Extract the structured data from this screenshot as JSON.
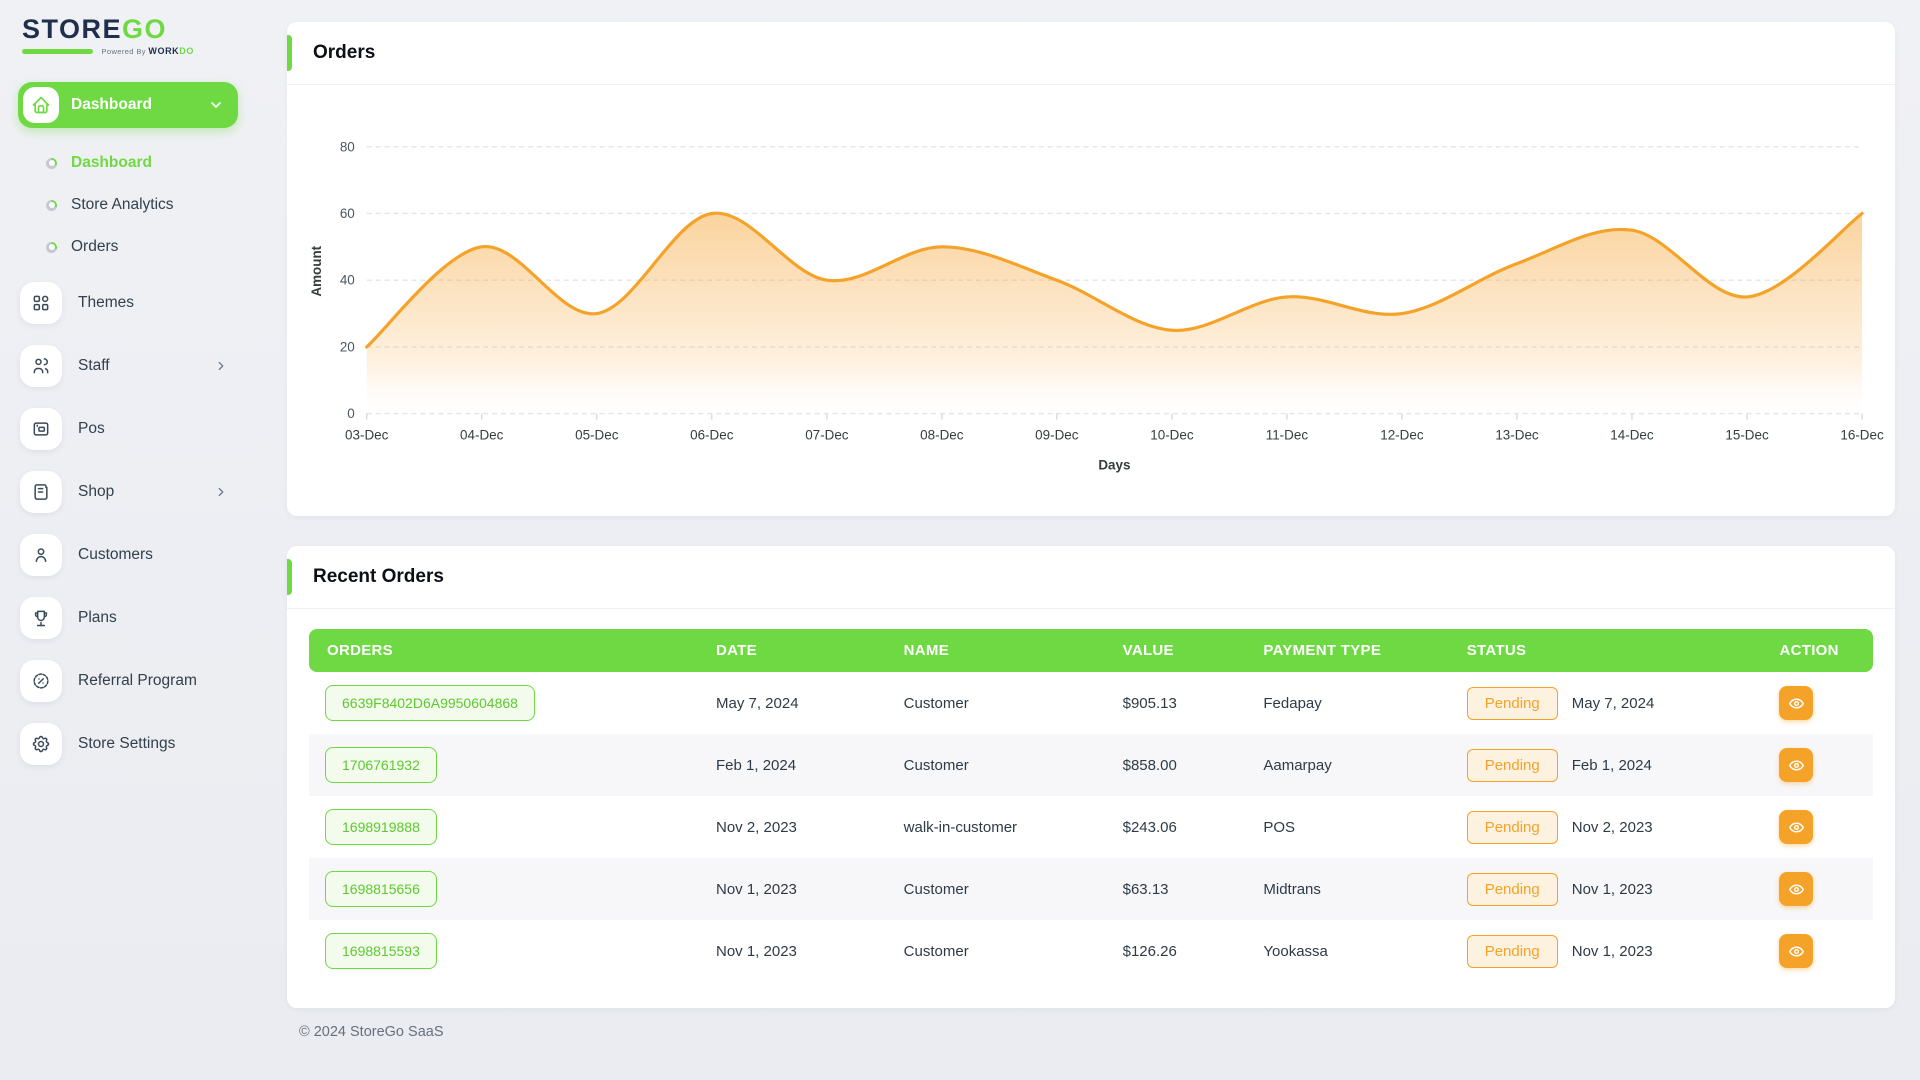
{
  "brand": {
    "name_part1": "STORE",
    "name_part2": "GO",
    "powered_prefix": "Powered By",
    "powered_brand_part1": "WORK",
    "powered_brand_part2": "DO"
  },
  "colors": {
    "primary_green": "#6fd943",
    "accent_orange": "#f5a228",
    "navy_text": "#20304c",
    "page_bg": "#eef0f4"
  },
  "sidebar": {
    "group": {
      "label": "Dashboard",
      "icon": "home-icon"
    },
    "submenu": [
      {
        "label": "Dashboard",
        "active": true
      },
      {
        "label": "Store Analytics",
        "active": false
      },
      {
        "label": "Orders",
        "active": false
      }
    ],
    "items": [
      {
        "label": "Themes",
        "icon": "grid-icon",
        "chevron": false
      },
      {
        "label": "Staff",
        "icon": "users-icon",
        "chevron": true
      },
      {
        "label": "Pos",
        "icon": "pos-terminal-icon",
        "chevron": false
      },
      {
        "label": "Shop",
        "icon": "receipt-icon",
        "chevron": true
      },
      {
        "label": "Customers",
        "icon": "user-icon",
        "chevron": false
      },
      {
        "label": "Plans",
        "icon": "trophy-icon",
        "chevron": false
      },
      {
        "label": "Referral Program",
        "icon": "percent-badge-icon",
        "chevron": false
      },
      {
        "label": "Store Settings",
        "icon": "gear-icon",
        "chevron": false
      }
    ]
  },
  "orders_card": {
    "title": "Orders"
  },
  "chart_data": {
    "type": "area",
    "title": "Orders",
    "x": [
      "03-Dec",
      "04-Dec",
      "05-Dec",
      "06-Dec",
      "07-Dec",
      "08-Dec",
      "09-Dec",
      "10-Dec",
      "11-Dec",
      "12-Dec",
      "13-Dec",
      "14-Dec",
      "15-Dec",
      "16-Dec"
    ],
    "values": [
      20,
      50,
      30,
      60,
      40,
      50,
      40,
      25,
      35,
      30,
      45,
      55,
      35,
      60
    ],
    "xlabel": "Days",
    "ylabel": "Amount",
    "ylim": [
      0,
      80
    ],
    "yticks": [
      0,
      20,
      40,
      60,
      80
    ],
    "grid": "dashed-horizontal",
    "legend": "none",
    "line_color": "#f5a228",
    "fill_from": "#f6a83e",
    "fill_to": "#ffffff"
  },
  "recent_orders": {
    "title": "Recent Orders",
    "columns": [
      "ORDERS",
      "DATE",
      "NAME",
      "VALUE",
      "PAYMENT TYPE",
      "STATUS",
      "ACTION"
    ],
    "rows": [
      {
        "order_id": "6639F8402D6A9950604868",
        "date": "May 7, 2024",
        "name": "Customer",
        "value": "$905.13",
        "payment": "Fedapay",
        "status": "Pending",
        "status_date": "May 7, 2024"
      },
      {
        "order_id": "1706761932",
        "date": "Feb 1, 2024",
        "name": "Customer",
        "value": "$858.00",
        "payment": "Aamarpay",
        "status": "Pending",
        "status_date": "Feb 1, 2024"
      },
      {
        "order_id": "1698919888",
        "date": "Nov 2, 2023",
        "name": "walk-in-customer",
        "value": "$243.06",
        "payment": "POS",
        "status": "Pending",
        "status_date": "Nov 2, 2023"
      },
      {
        "order_id": "1698815656",
        "date": "Nov 1, 2023",
        "name": "Customer",
        "value": "$63.13",
        "payment": "Midtrans",
        "status": "Pending",
        "status_date": "Nov 1, 2023"
      },
      {
        "order_id": "1698815593",
        "date": "Nov 1, 2023",
        "name": "Customer",
        "value": "$126.26",
        "payment": "Yookassa",
        "status": "Pending",
        "status_date": "Nov 1, 2023"
      }
    ]
  },
  "footer": {
    "copyright": "© 2024 StoreGo SaaS"
  }
}
